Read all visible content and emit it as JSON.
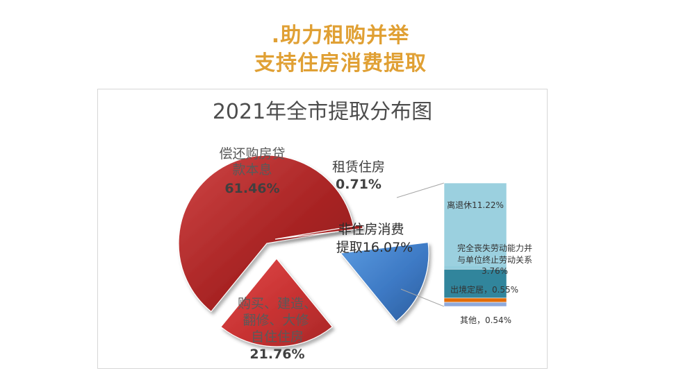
{
  "slide": {
    "title_line1": ".助力租购并举",
    "title_line2": "支持住房消费提取",
    "title_color": "#e0a034"
  },
  "chart_data": {
    "type": "pie",
    "title": "2021年全市提取分布图",
    "slices": [
      {
        "label_lines": [
          "偿还购房贷",
          "款本息"
        ],
        "value_label": "61.46%",
        "value": 61.46,
        "color": "#b22a2a"
      },
      {
        "label_lines": [
          "租赁住房"
        ],
        "value_label": "0.71%",
        "value": 0.71,
        "color": "#c23a32"
      },
      {
        "label_lines": [
          "非住房消费",
          "提取16.07%"
        ],
        "value_label": "",
        "value": 16.07,
        "color": "#3d79c4"
      },
      {
        "label_lines": [
          "购买、建造、",
          "翻修、大修",
          "自住住房"
        ],
        "value_label": "21.76%",
        "value": 21.76,
        "color": "#d33c3c"
      }
    ],
    "breakdown": {
      "parent": "非住房消费提取",
      "segments": [
        {
          "label": "离退休11.22%",
          "value": 11.22,
          "color": "#93cddd"
        },
        {
          "label_lines": [
            "完全丧失劳动能力并",
            "与单位终止劳动关系",
            "3.76%"
          ],
          "value": 3.76,
          "color": "#31859c"
        },
        {
          "label": "出境定居，0.55%",
          "value": 0.55,
          "color": "#e36c09"
        },
        {
          "label": "其他，0.54%",
          "value": 0.54,
          "color": "#8ea9db"
        }
      ]
    }
  }
}
